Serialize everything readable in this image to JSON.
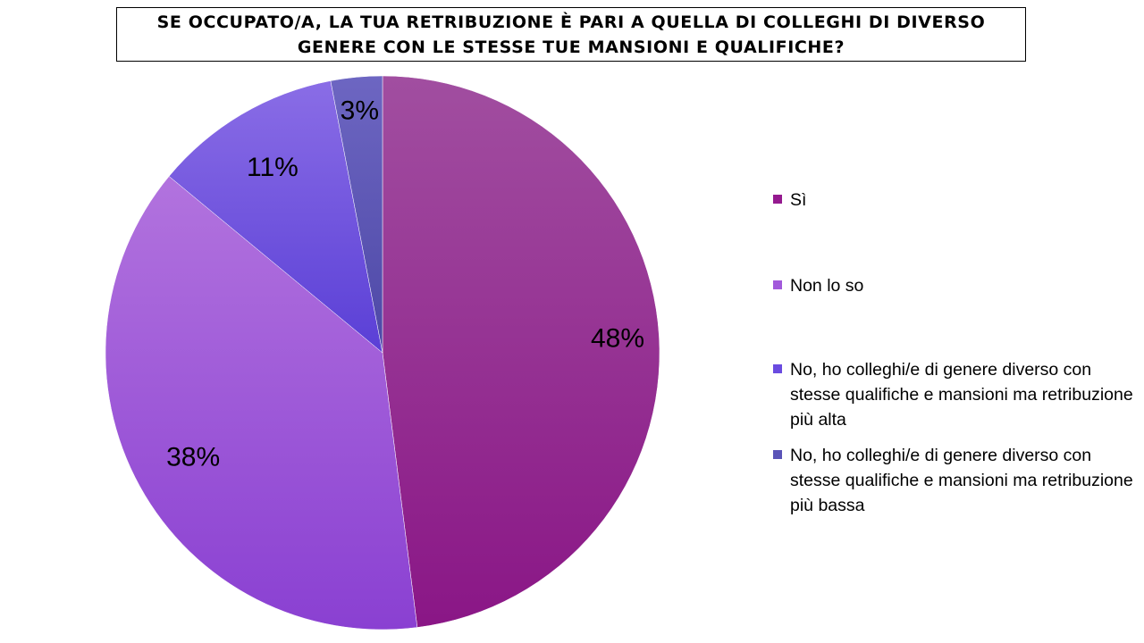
{
  "chart_data": {
    "type": "pie",
    "title": "SE OCCUPATO/A, LA TUA RETRIBUZIONE È PARI A QUELLA DI COLLEGHI DI DIVERSO GENERE CON LE STESSE TUE MANSIONI E QUALIFICHE?",
    "categories": [
      "Sì",
      "Non lo so",
      "No, ho colleghi/e di genere diverso con stesse qualifiche e mansioni ma retribuzione più alta",
      "No, ho colleghi/e di genere diverso con stesse qualifiche e mansioni ma retribuzione più bassa"
    ],
    "values": [
      48,
      38,
      11,
      3
    ],
    "data_labels": [
      "48%",
      "38%",
      "11%",
      "3%"
    ],
    "colors": [
      [
        "#a14ea0",
        "#8a1686"
      ],
      [
        "#b273de",
        "#8a40d2"
      ],
      [
        "#8a6de6",
        "#5a3fd6"
      ],
      [
        "#6d66c2",
        "#4d48a6"
      ]
    ],
    "legend_colors": [
      "#951a8f",
      "#a259db",
      "#6a4be0",
      "#5a54b8"
    ],
    "legend_position": "right",
    "start_angle": "12 o'clock, clockwise"
  }
}
